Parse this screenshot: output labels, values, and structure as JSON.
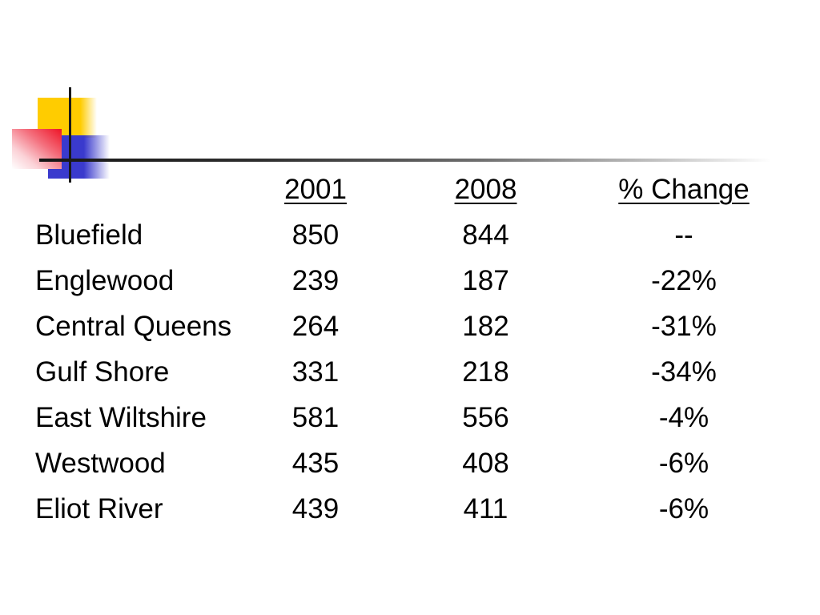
{
  "table": {
    "headers": [
      "2001",
      "2008",
      "% Change"
    ],
    "rows": [
      {
        "name": "Bluefield",
        "y2001": "850",
        "y2008": "844",
        "change": "--"
      },
      {
        "name": "Englewood",
        "y2001": "239",
        "y2008": "187",
        "change": "-22%"
      },
      {
        "name": "Central Queens",
        "y2001": "264",
        "y2008": "182",
        "change": "-31%"
      },
      {
        "name": "Gulf Shore",
        "y2001": "331",
        "y2008": "218",
        "change": "-34%"
      },
      {
        "name": "East Wiltshire",
        "y2001": "581",
        "y2008": "556",
        "change": "-4%"
      },
      {
        "name": "Westwood",
        "y2001": "435",
        "y2008": "408",
        "change": "-6%"
      },
      {
        "name": "Eliot River",
        "y2001": "439",
        "y2008": "411",
        "change": "-6%"
      }
    ]
  },
  "decoration": {
    "yellow_square": "#FFCC00",
    "blue_square": "#3A3ACD",
    "red_square": "#EE1426",
    "crosshair_line": "#1A1A1A"
  },
  "chart_data": {
    "type": "table",
    "columns": [
      "",
      "2001",
      "2008",
      "% Change"
    ],
    "rows": [
      [
        "Bluefield",
        850,
        844,
        "--"
      ],
      [
        "Englewood",
        239,
        187,
        "-22%"
      ],
      [
        "Central Queens",
        264,
        182,
        "-31%"
      ],
      [
        "Gulf Shore",
        331,
        218,
        "-34%"
      ],
      [
        "East Wiltshire",
        581,
        556,
        "-4%"
      ],
      [
        "Westwood",
        435,
        408,
        "-6%"
      ],
      [
        "Eliot River",
        439,
        411,
        "-6%"
      ]
    ]
  }
}
